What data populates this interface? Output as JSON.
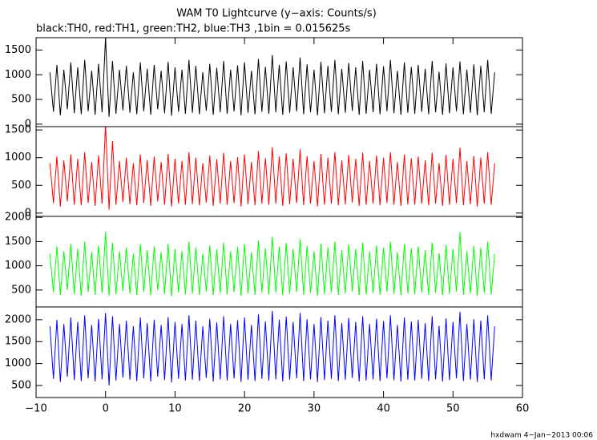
{
  "chart_data": {
    "type": "line",
    "title": "WAM T0 Lightcurve (y−axis: Counts/s)",
    "subtitle": "black:TH0, red:TH1, green:TH2, blue:TH3 ,1bin = 0.015625s",
    "footer": "hxdwam  4−Jan−2013 00:06",
    "xlim": [
      -10,
      60
    ],
    "xticks": [
      {
        "value": -10,
        "label": "−10"
      },
      0,
      10,
      20,
      30,
      40,
      50,
      60
    ],
    "x": [
      -8,
      -7.5,
      -7,
      -6.5,
      -6,
      -5.5,
      -5,
      -4.5,
      -4,
      -3.5,
      -3,
      -2.5,
      -2,
      -1.5,
      -1,
      -0.5,
      0,
      0.5,
      1,
      1.5,
      2,
      2.5,
      3,
      3.5,
      4,
      4.5,
      5,
      5.5,
      6,
      6.5,
      7,
      7.5,
      8,
      8.5,
      9,
      9.5,
      10,
      10.5,
      11,
      11.5,
      12,
      12.5,
      13,
      13.5,
      14,
      14.5,
      15,
      15.5,
      16,
      16.5,
      17,
      17.5,
      18,
      18.5,
      19,
      19.5,
      20,
      20.5,
      21,
      21.5,
      22,
      22.5,
      23,
      23.5,
      24,
      24.5,
      25,
      25.5,
      26,
      26.5,
      27,
      27.5,
      28,
      28.5,
      29,
      29.5,
      30,
      30.5,
      31,
      31.5,
      32,
      32.5,
      33,
      33.5,
      34,
      34.5,
      35,
      35.5,
      36,
      36.5,
      37,
      37.5,
      38,
      38.5,
      39,
      39.5,
      40,
      40.5,
      41,
      41.5,
      42,
      42.5,
      43,
      43.5,
      44,
      44.5,
      45,
      45.5,
      46,
      46.5,
      47,
      47.5,
      48,
      48.5,
      49,
      49.5,
      50,
      50.5,
      51,
      51.5,
      52,
      52.5,
      53,
      53.5,
      54,
      54.5,
      55,
      55.5,
      56
    ],
    "panels": [
      {
        "color": "#000000",
        "ylim": [
          -50,
          1750
        ],
        "yticks": [
          0,
          500,
          1000,
          1500
        ],
        "values": [
          1050,
          250,
          1200,
          180,
          1100,
          300,
          1250,
          220,
          1150,
          200,
          1300,
          260,
          1080,
          190,
          1220,
          240,
          1750,
          150,
          1280,
          210,
          1100,
          280,
          1180,
          230,
          1050,
          200,
          1250,
          260,
          1120,
          190,
          1200,
          300,
          1080,
          220,
          1260,
          170,
          1150,
          250,
          1100,
          210,
          1300,
          230,
          1180,
          200,
          1050,
          270,
          1220,
          190,
          1140,
          240,
          1280,
          210,
          1100,
          260,
          1190,
          180,
          1250,
          230,
          1080,
          200,
          1320,
          250,
          1160,
          210,
          1400,
          240,
          1200,
          190,
          1270,
          230,
          1150,
          260,
          1350,
          200,
          1210,
          240,
          1100,
          180,
          1260,
          220,
          1180,
          250,
          1300,
          200,
          1120,
          230,
          1240,
          270,
          1150,
          190,
          1280,
          210,
          1100,
          240,
          1220,
          200,
          1170,
          260,
          1300,
          220,
          1080,
          190,
          1250,
          230,
          1160,
          210,
          1200,
          250,
          1120,
          200,
          1280,
          240,
          1060,
          190,
          1230,
          220,
          1150,
          260,
          1270,
          200,
          1100,
          230,
          1210,
          180,
          1180,
          240,
          1300,
          210,
          1050
        ]
      },
      {
        "color": "#ff0000",
        "ylim": [
          -60,
          1560
        ],
        "yticks": [
          0,
          500,
          1000,
          1500
        ],
        "values": [
          900,
          180,
          1020,
          120,
          950,
          210,
          1060,
          150,
          980,
          140,
          1100,
          180,
          920,
          130,
          1040,
          170,
          1600,
          60,
          1300,
          150,
          940,
          200,
          1000,
          160,
          900,
          140,
          1060,
          180,
          960,
          130,
          1020,
          210,
          920,
          150,
          1070,
          120,
          980,
          170,
          940,
          150,
          1100,
          160,
          1000,
          140,
          900,
          190,
          1040,
          130,
          970,
          170,
          1090,
          150,
          940,
          180,
          1010,
          120,
          1060,
          160,
          920,
          140,
          1120,
          170,
          990,
          150,
          1190,
          170,
          1020,
          130,
          1080,
          160,
          980,
          180,
          1150,
          140,
          1030,
          170,
          940,
          120,
          1070,
          150,
          1000,
          170,
          1100,
          140,
          950,
          160,
          1050,
          190,
          980,
          130,
          1090,
          150,
          940,
          170,
          1040,
          140,
          1000,
          180,
          1100,
          150,
          920,
          130,
          1060,
          160,
          990,
          150,
          1020,
          170,
          950,
          140,
          1090,
          170,
          900,
          130,
          1050,
          150,
          980,
          180,
          1180,
          140,
          940,
          160,
          1030,
          120,
          1000,
          170,
          1100,
          150,
          900
        ]
      },
      {
        "color": "#00ff00",
        "ylim": [
          150,
          2020
        ],
        "yticks": [
          500,
          1000,
          1500,
          2000
        ],
        "values": [
          1250,
          450,
          1400,
          400,
          1300,
          500,
          1450,
          420,
          1350,
          380,
          1500,
          460,
          1280,
          400,
          1420,
          440,
          1700,
          380,
          1480,
          410,
          1300,
          480,
          1380,
          430,
          1250,
          400,
          1450,
          460,
          1320,
          390,
          1400,
          500,
          1280,
          420,
          1460,
          370,
          1350,
          450,
          1300,
          410,
          1500,
          430,
          1380,
          400,
          1250,
          470,
          1420,
          390,
          1340,
          440,
          1480,
          410,
          1300,
          460,
          1390,
          380,
          1450,
          430,
          1280,
          400,
          1520,
          450,
          1360,
          410,
          1600,
          440,
          1400,
          390,
          1470,
          430,
          1350,
          460,
          1550,
          400,
          1410,
          440,
          1300,
          380,
          1460,
          420,
          1380,
          450,
          1500,
          400,
          1320,
          430,
          1440,
          470,
          1350,
          390,
          1480,
          410,
          1300,
          440,
          1420,
          400,
          1370,
          460,
          1500,
          420,
          1280,
          390,
          1450,
          430,
          1360,
          410,
          1400,
          450,
          1320,
          400,
          1480,
          440,
          1260,
          390,
          1430,
          420,
          1350,
          460,
          1700,
          400,
          1300,
          430,
          1410,
          380,
          1380,
          440,
          1500,
          410,
          1250
        ]
      },
      {
        "color": "#0000ff",
        "ylim": [
          225,
          2290
        ],
        "yticks": [
          500,
          1000,
          1500,
          2000
        ],
        "values": [
          1850,
          650,
          2000,
          580,
          1900,
          700,
          2050,
          620,
          1950,
          600,
          2100,
          660,
          1880,
          590,
          2020,
          640,
          2150,
          500,
          2080,
          610,
          1900,
          680,
          1980,
          630,
          1850,
          600,
          2050,
          660,
          1920,
          590,
          2000,
          700,
          1880,
          620,
          2060,
          570,
          1950,
          650,
          1900,
          610,
          2100,
          630,
          1980,
          600,
          1850,
          670,
          2020,
          590,
          1940,
          640,
          2080,
          610,
          1900,
          660,
          1990,
          580,
          2050,
          630,
          1880,
          600,
          2120,
          650,
          1960,
          610,
          2200,
          640,
          2000,
          590,
          2070,
          630,
          1950,
          660,
          2150,
          600,
          2010,
          640,
          1900,
          580,
          2060,
          620,
          1980,
          650,
          2100,
          600,
          1920,
          630,
          2040,
          670,
          1950,
          590,
          2080,
          610,
          1900,
          640,
          2020,
          600,
          1970,
          660,
          2100,
          620,
          1880,
          590,
          2050,
          630,
          1960,
          610,
          2000,
          650,
          1920,
          600,
          2080,
          640,
          1860,
          590,
          2030,
          620,
          1950,
          660,
          2180,
          600,
          1900,
          630,
          2010,
          580,
          1980,
          640,
          2100,
          610,
          1850
        ]
      }
    ]
  }
}
